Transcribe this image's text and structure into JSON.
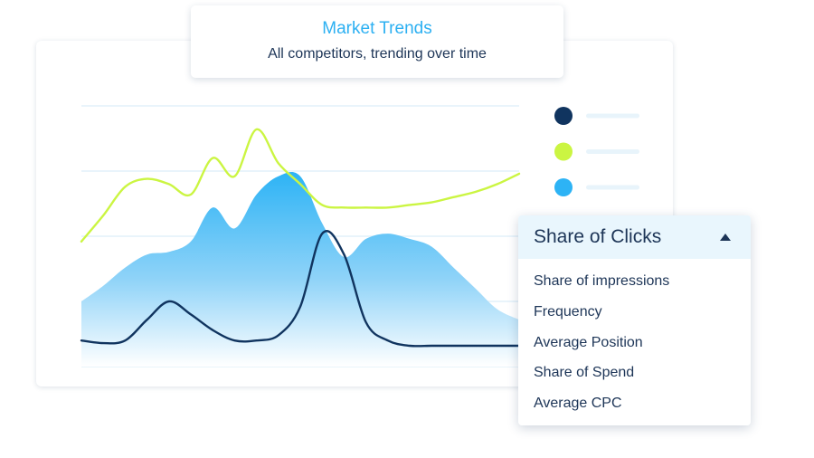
{
  "title_card": {
    "title": "Market Trends",
    "subtitle": "All competitors, trending over time"
  },
  "legend": [
    {
      "color": "#10345f",
      "label": ""
    },
    {
      "color": "#cbf542",
      "label": ""
    },
    {
      "color": "#2db3f5",
      "label": ""
    }
  ],
  "dropdown": {
    "selected": "Share of Clicks",
    "caret_icon": "caret-up-icon",
    "options": [
      "Share of impressions",
      "Frequency",
      "Average Position",
      "Share of Spend",
      "Average CPC"
    ]
  },
  "colors": {
    "accent": "#2cb0f2",
    "navy": "#1d3557",
    "lime": "#cbf542",
    "gridline": "#e9f4fb"
  },
  "chart_data": {
    "type": "area",
    "title": "",
    "xlabel": "",
    "ylabel": "",
    "grid": true,
    "legend_position": "right",
    "x": [
      0,
      1,
      2,
      3,
      4,
      5,
      6,
      7,
      8,
      9,
      10,
      11,
      12,
      13,
      14,
      15,
      16,
      17,
      18,
      19,
      20
    ],
    "ylim": [
      0,
      100
    ],
    "series": [
      {
        "color": "#cbf542",
        "style": "line",
        "values": [
          48,
          58,
          69,
          72,
          70,
          66,
          80,
          73,
          91,
          78,
          70,
          62,
          61,
          61,
          61,
          62,
          63,
          65,
          67,
          70,
          74
        ]
      },
      {
        "color": "#2db3f5",
        "style": "area",
        "values": [
          25,
          31,
          38,
          43,
          44,
          48,
          61,
          53,
          66,
          73,
          73,
          55,
          42,
          49,
          51,
          49,
          46,
          38,
          30,
          22,
          18
        ]
      },
      {
        "color": "#10345f",
        "style": "line",
        "values": [
          10,
          9,
          10,
          18,
          25,
          20,
          14,
          10,
          10,
          12,
          23,
          51,
          43,
          17,
          10,
          8,
          8,
          8,
          8,
          8,
          8
        ]
      }
    ]
  }
}
